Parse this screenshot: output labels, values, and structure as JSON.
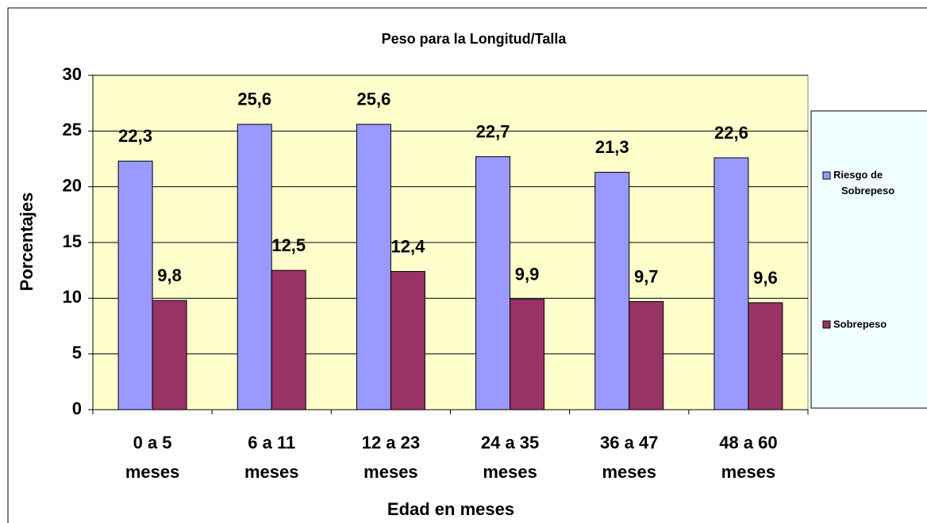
{
  "chart_data": {
    "type": "bar",
    "title": "Peso para la Longitud/Talla",
    "x_label": "Edad en meses",
    "y_label": "Porcentajes",
    "categories": [
      "0 a 5 meses",
      "6 a 11 meses",
      "12 a 23 meses",
      "24 a 35 meses",
      "36 a 47 meses",
      "48 a 60 meses"
    ],
    "series": [
      {
        "name": "Riesgo de Sobrepeso",
        "color": "#9999ff",
        "values": [
          22.3,
          25.6,
          25.6,
          22.7,
          21.3,
          22.6
        ],
        "value_labels": [
          "22,3",
          "25,6",
          "25,6",
          "22,7",
          "21,3",
          "22,6"
        ]
      },
      {
        "name": "Sobrepeso",
        "color": "#993366",
        "values": [
          9.8,
          12.5,
          12.4,
          9.9,
          9.7,
          9.6
        ],
        "value_labels": [
          "9,8",
          "12,5",
          "12,4",
          "9,9",
          "9,7",
          "9,6"
        ]
      }
    ],
    "ylim": [
      0,
      30
    ],
    "yticks": [
      0,
      5,
      10,
      15,
      20,
      25,
      30
    ],
    "grid": true,
    "legend": "right"
  }
}
